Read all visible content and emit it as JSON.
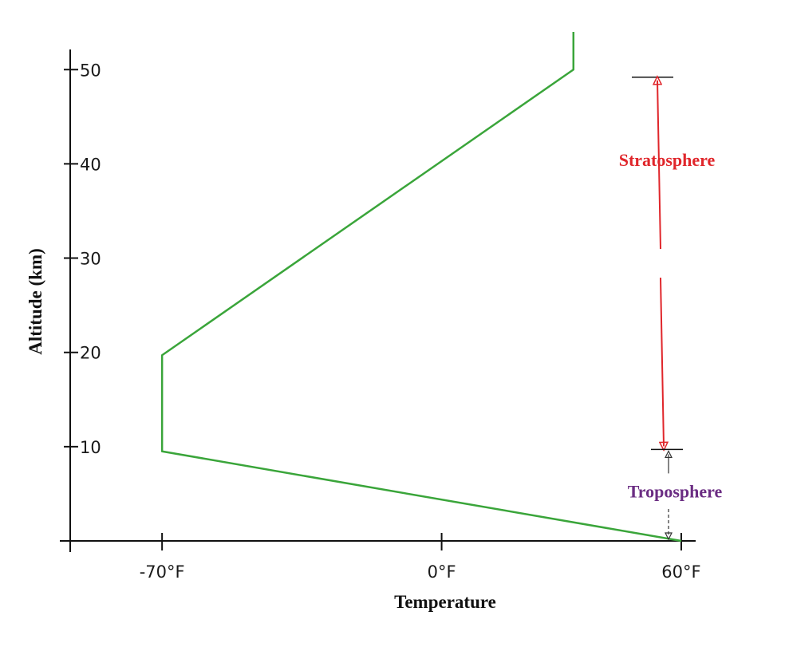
{
  "chart_data": {
    "type": "line",
    "xlabel": "Temperature",
    "ylabel": "Altitude (km)",
    "x_ticks": [
      {
        "value": -70,
        "label": "-70°F"
      },
      {
        "value": 0,
        "label": "0°F"
      },
      {
        "value": 60,
        "label": "60°F"
      }
    ],
    "y_ticks": [
      {
        "value": 10,
        "label": "10"
      },
      {
        "value": 20,
        "label": "20"
      },
      {
        "value": 30,
        "label": "30"
      },
      {
        "value": 40,
        "label": "40"
      },
      {
        "value": 50,
        "label": "50"
      }
    ],
    "xlim": [
      -93,
      66
    ],
    "ylim": [
      0,
      54
    ],
    "series": [
      {
        "color": "#3aa53a",
        "points": [
          {
            "x": 60,
            "y": 0
          },
          {
            "x": -70,
            "y": 9.5
          },
          {
            "x": -70,
            "y": 19.7
          },
          {
            "x": 33,
            "y": 50
          },
          {
            "x": 33,
            "y": 54
          }
        ]
      }
    ],
    "annotations": [
      {
        "label": "Stratosphere",
        "from_y": 9.7,
        "to_y": 49.2,
        "color": "#e0262b"
      },
      {
        "label": "Troposphere",
        "from_y": 0,
        "to_y": 9.7,
        "color": "#6b2d83"
      }
    ],
    "grid": false
  }
}
